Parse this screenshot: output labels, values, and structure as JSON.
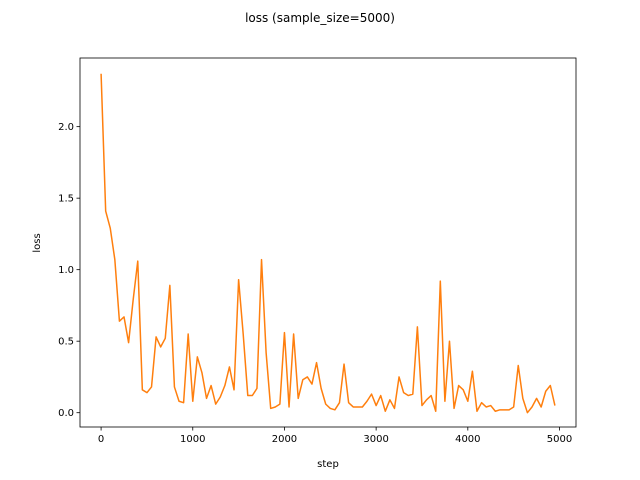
{
  "chart_data": {
    "type": "line",
    "title": "loss (sample_size=5000)",
    "xlabel": "step",
    "ylabel": "loss",
    "xlim": [
      -230,
      5180
    ],
    "ylim": [
      -0.1,
      2.48
    ],
    "xticks": [
      0,
      1000,
      2000,
      3000,
      4000,
      5000
    ],
    "yticks": [
      0.0,
      0.5,
      1.0,
      1.5,
      2.0
    ],
    "xtick_labels": [
      "0",
      "1000",
      "2000",
      "3000",
      "4000",
      "5000"
    ],
    "ytick_labels": [
      "0.0",
      "0.5",
      "1.0",
      "1.5",
      "2.0"
    ],
    "grid": false,
    "series": [
      {
        "color": "#ff7f0e",
        "x": [
          0,
          50,
          100,
          150,
          200,
          250,
          300,
          350,
          400,
          450,
          500,
          550,
          600,
          650,
          700,
          750,
          800,
          850,
          900,
          950,
          1000,
          1050,
          1100,
          1150,
          1200,
          1250,
          1300,
          1350,
          1400,
          1450,
          1500,
          1550,
          1600,
          1650,
          1700,
          1750,
          1800,
          1850,
          1900,
          1950,
          2000,
          2050,
          2100,
          2150,
          2200,
          2250,
          2300,
          2350,
          2400,
          2450,
          2500,
          2550,
          2600,
          2650,
          2700,
          2750,
          2800,
          2850,
          2900,
          2950,
          3000,
          3050,
          3100,
          3150,
          3200,
          3250,
          3300,
          3350,
          3400,
          3450,
          3500,
          3550,
          3600,
          3650,
          3700,
          3750,
          3800,
          3850,
          3900,
          3950,
          4000,
          4050,
          4100,
          4150,
          4200,
          4250,
          4300,
          4350,
          4400,
          4450,
          4500,
          4550,
          4600,
          4650,
          4700,
          4750,
          4800,
          4850,
          4900,
          4950
        ],
        "y": [
          2.37,
          1.41,
          1.29,
          1.07,
          0.64,
          0.67,
          0.49,
          0.79,
          1.06,
          0.16,
          0.14,
          0.18,
          0.53,
          0.46,
          0.52,
          0.89,
          0.18,
          0.08,
          0.07,
          0.55,
          0.08,
          0.39,
          0.28,
          0.1,
          0.19,
          0.06,
          0.11,
          0.19,
          0.32,
          0.16,
          0.93,
          0.55,
          0.12,
          0.12,
          0.17,
          1.07,
          0.42,
          0.03,
          0.04,
          0.06,
          0.56,
          0.04,
          0.55,
          0.1,
          0.23,
          0.25,
          0.2,
          0.35,
          0.17,
          0.06,
          0.03,
          0.02,
          0.07,
          0.34,
          0.07,
          0.04,
          0.04,
          0.04,
          0.08,
          0.13,
          0.05,
          0.12,
          0.01,
          0.09,
          0.03,
          0.25,
          0.14,
          0.12,
          0.13,
          0.6,
          0.05,
          0.09,
          0.12,
          0.01,
          0.92,
          0.08,
          0.5,
          0.03,
          0.19,
          0.16,
          0.08,
          0.29,
          0.01,
          0.07,
          0.04,
          0.05,
          0.01,
          0.02,
          0.02,
          0.02,
          0.04,
          0.33,
          0.1,
          0.0,
          0.04,
          0.1,
          0.04,
          0.15,
          0.19,
          0.05
        ]
      }
    ]
  }
}
